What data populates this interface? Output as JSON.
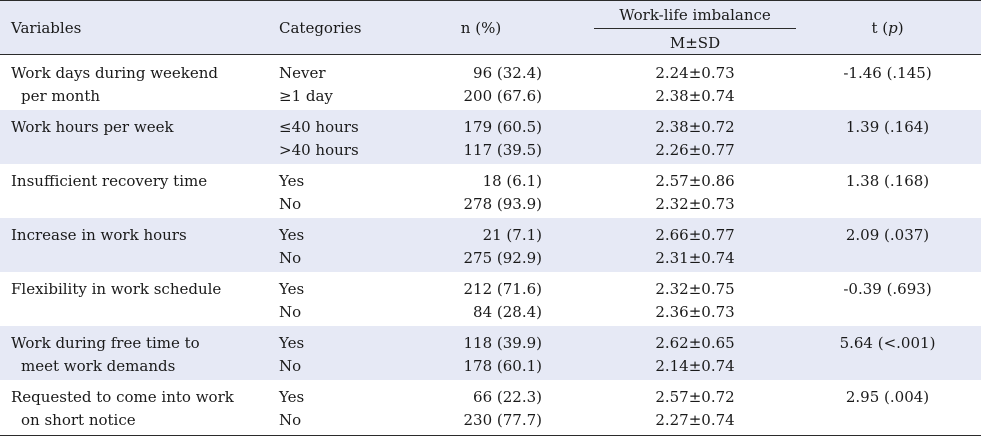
{
  "header": {
    "variables": "Variables",
    "categories": "Categories",
    "n_pct": "n (%)",
    "wli": "Work-life imbalance",
    "msd": "M±SD",
    "t_prefix": "t (",
    "p": "p",
    "t_suffix": ")"
  },
  "rows": [
    {
      "var1": "Work days during weekend",
      "var2": "per month",
      "cat1": "Never",
      "cat2": "≥1 day",
      "n1": "96 (32.4)",
      "n2": "200 (67.6)",
      "m1": "2.24±0.73",
      "m2": "2.38±0.74",
      "t": "-1.46 (.145)"
    },
    {
      "var1": "Work hours per week",
      "var2": "",
      "cat1": "≤40 hours",
      "cat2": ">40 hours",
      "n1": "179 (60.5)",
      "n2": "117 (39.5)",
      "m1": "2.38±0.72",
      "m2": "2.26±0.77",
      "t": "1.39 (.164)"
    },
    {
      "var1": "Insufficient recovery time",
      "var2": "",
      "cat1": "Yes",
      "cat2": "No",
      "n1": "18 (6.1)",
      "n2": "278 (93.9)",
      "m1": "2.57±0.86",
      "m2": "2.32±0.73",
      "t": "1.38 (.168)"
    },
    {
      "var1": "Increase in work hours",
      "var2": "",
      "cat1": "Yes",
      "cat2": "No",
      "n1": "21 (7.1)",
      "n2": "275 (92.9)",
      "m1": "2.66±0.77",
      "m2": "2.31±0.74",
      "t": "2.09 (.037)"
    },
    {
      "var1": "Flexibility in work schedule",
      "var2": "",
      "cat1": "Yes",
      "cat2": "No",
      "n1": "212 (71.6)",
      "n2": "84 (28.4)",
      "m1": "2.32±0.75",
      "m2": "2.36±0.73",
      "t": "-0.39 (.693)"
    },
    {
      "var1": "Work during free time to",
      "var2": "meet work demands",
      "cat1": "Yes",
      "cat2": "No",
      "n1": "118 (39.9)",
      "n2": "178 (60.1)",
      "m1": "2.62±0.65",
      "m2": "2.14±0.74",
      "t": "5.64 (<.001)"
    },
    {
      "var1": "Requested to come into work",
      "var2": "on short notice",
      "cat1": "Yes",
      "cat2": "No",
      "n1": "66 (22.3)",
      "n2": "230 (77.7)",
      "m1": "2.57±0.72",
      "m2": "2.27±0.74",
      "t": "2.95 (.004)"
    }
  ]
}
